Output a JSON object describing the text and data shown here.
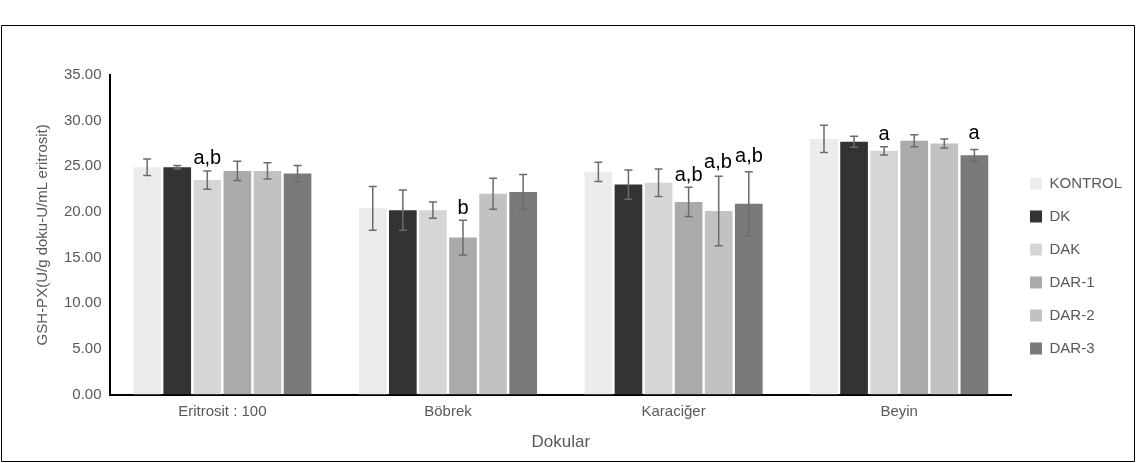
{
  "chart_data": {
    "type": "bar",
    "categories": [
      "Eritrosit : 100",
      "Böbrek",
      "Karaciğer",
      "Beyin"
    ],
    "xlabel": "Dokular",
    "ylabel": "GSH-PX(U/g doku-U/mL eritrosit)",
    "ylim": [
      0,
      35
    ],
    "yticks": [
      {
        "value": 0,
        "label": "0.00"
      },
      {
        "value": 5,
        "label": "5.00"
      },
      {
        "value": 10,
        "label": "10.00"
      },
      {
        "value": 15,
        "label": "15.00"
      },
      {
        "value": 20,
        "label": "20.00"
      },
      {
        "value": 25,
        "label": "25.00"
      },
      {
        "value": 30,
        "label": "30.00"
      },
      {
        "value": 35,
        "label": "35.00"
      }
    ],
    "grid": false,
    "legend": "right",
    "series": [
      {
        "name": "KONTROL",
        "color": "#ececec",
        "values": [
          24.9,
          20.4,
          24.4,
          28.0
        ],
        "errors": [
          0.9,
          2.4,
          1.05,
          1.5
        ]
      },
      {
        "name": "DK",
        "color": "#333333",
        "values": [
          24.9,
          20.2,
          23.0,
          27.7
        ],
        "errors": [
          0.2,
          2.2,
          1.6,
          0.6
        ]
      },
      {
        "name": "DAK",
        "color": "#d6d6d6",
        "values": [
          23.5,
          20.2,
          23.2,
          26.7
        ],
        "errors": [
          1.0,
          0.9,
          1.5,
          0.45
        ]
      },
      {
        "name": "DAR-1",
        "color": "#aaaaaa",
        "values": [
          24.5,
          17.2,
          21.1,
          27.8
        ],
        "errors": [
          1.05,
          1.9,
          1.6,
          0.65
        ]
      },
      {
        "name": "DAR-2",
        "color": "#c2c2c2",
        "values": [
          24.5,
          22.0,
          20.1,
          27.5
        ],
        "errors": [
          0.9,
          1.7,
          3.8,
          0.5
        ]
      },
      {
        "name": "DAR-3",
        "color": "#7a7a7a",
        "values": [
          24.2,
          22.2,
          20.9,
          26.2
        ],
        "errors": [
          0.9,
          1.9,
          3.5,
          0.65
        ]
      }
    ],
    "annotations": [
      {
        "text": "a,b",
        "x": "Eritrosit : 100",
        "y": 24.5
      },
      {
        "text": "b",
        "x": "Böbrek",
        "y": 19.1
      },
      {
        "text": "a,b",
        "x": "Karaciğer",
        "y": 22.7
      },
      "a,b",
      "a,b",
      {
        "text": "a",
        "x": "Beyin",
        "y": 27.15
      },
      "a"
    ]
  }
}
